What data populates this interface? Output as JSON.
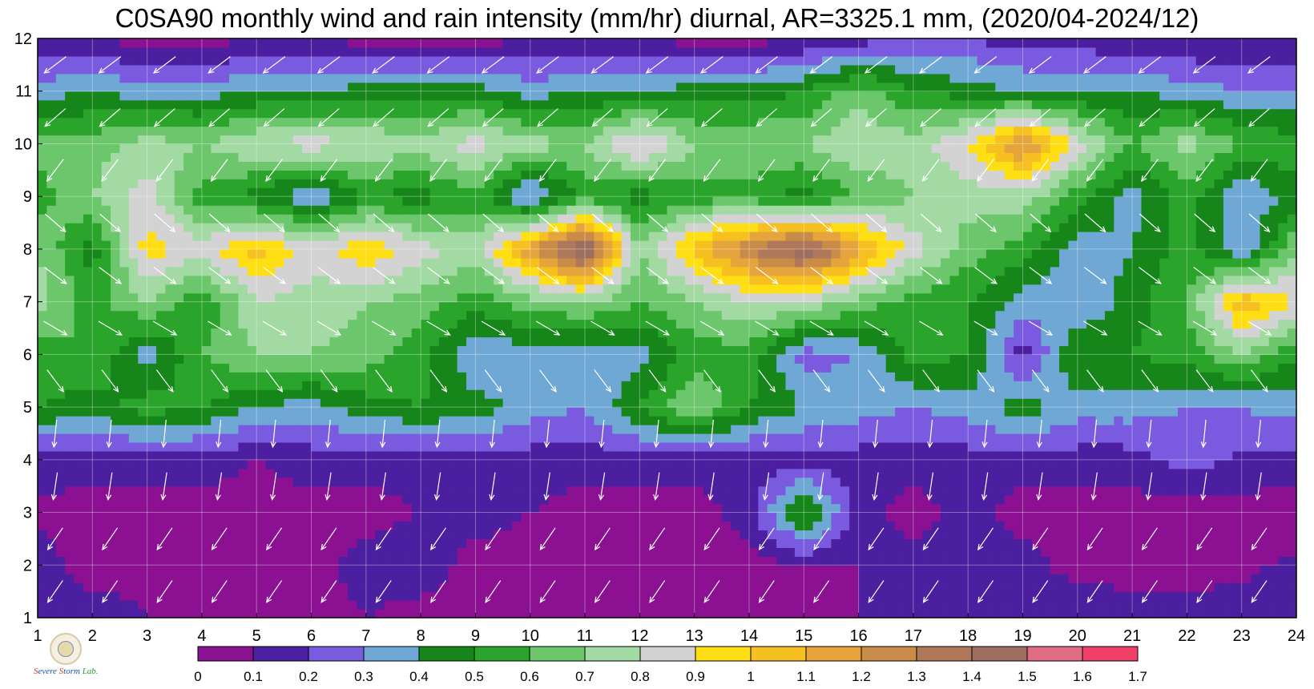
{
  "chart_data": {
    "type": "heatmap",
    "title": "C0SA90 monthly wind and rain intensity (mm/hr) diurnal, AR=3325.1 mm, (2020/04-2024/12)",
    "x_ticks": [
      "1",
      "2",
      "3",
      "4",
      "5",
      "6",
      "7",
      "8",
      "9",
      "10",
      "11",
      "12",
      "13",
      "14",
      "15",
      "16",
      "17",
      "18",
      "19",
      "20",
      "21",
      "22",
      "23",
      "24"
    ],
    "y_ticks": [
      "1",
      "2",
      "3",
      "4",
      "5",
      "6",
      "7",
      "8",
      "9",
      "10",
      "11",
      "12"
    ],
    "xlim": [
      1,
      24
    ],
    "ylim": [
      1,
      12
    ],
    "x_hours": [
      1,
      2,
      3,
      4,
      5,
      6,
      7,
      8,
      9,
      10,
      11,
      12,
      13,
      14,
      15,
      16,
      17,
      18,
      19,
      20,
      21,
      22,
      23,
      24
    ],
    "y_months": [
      1,
      2,
      3,
      4,
      5,
      6,
      7,
      8,
      9,
      10,
      11,
      12
    ],
    "z": [
      [
        0.12,
        0.15,
        0.1,
        0.05,
        0.05,
        0.05,
        0.1,
        0.05,
        0.05,
        0.1,
        0.05,
        0.05,
        0.05,
        0.05,
        0.05,
        0.1,
        0.15,
        0.2,
        0.15,
        0.2,
        0.15,
        0.15,
        0.15,
        0.15
      ],
      [
        0.15,
        0.05,
        0.08,
        0.05,
        0.05,
        0.05,
        0.15,
        0.18,
        0.05,
        0.05,
        0.05,
        0.05,
        0.05,
        0.05,
        0.1,
        0.1,
        0.15,
        0.2,
        0.15,
        0.05,
        0.05,
        0.05,
        0.08,
        0.12
      ],
      [
        0.08,
        0.05,
        0.05,
        0.05,
        0.05,
        0.05,
        0.05,
        0.1,
        0.15,
        0.1,
        0.05,
        0.05,
        0.05,
        0.15,
        0.55,
        0.15,
        0.05,
        0.15,
        0.05,
        0.05,
        0.05,
        0.05,
        0.05,
        0.05
      ],
      [
        0.15,
        0.15,
        0.15,
        0.15,
        0.1,
        0.15,
        0.15,
        0.15,
        0.15,
        0.15,
        0.15,
        0.15,
        0.15,
        0.15,
        0.15,
        0.15,
        0.15,
        0.15,
        0.15,
        0.15,
        0.15,
        0.25,
        0.18,
        0.15
      ],
      [
        0.5,
        0.45,
        0.55,
        0.5,
        0.4,
        0.35,
        0.45,
        0.5,
        0.45,
        0.35,
        0.3,
        0.5,
        0.7,
        0.5,
        0.4,
        0.35,
        0.3,
        0.35,
        0.45,
        0.35,
        0.35,
        0.3,
        0.3,
        0.35
      ],
      [
        0.55,
        0.6,
        0.35,
        0.6,
        0.7,
        0.7,
        0.65,
        0.55,
        0.3,
        0.35,
        0.35,
        0.35,
        0.55,
        0.55,
        0.25,
        0.3,
        0.55,
        0.5,
        0.15,
        0.5,
        0.5,
        0.55,
        0.7,
        0.5
      ],
      [
        0.75,
        0.55,
        0.7,
        0.5,
        0.8,
        0.75,
        0.7,
        0.65,
        0.55,
        0.65,
        0.7,
        0.6,
        0.7,
        0.8,
        0.8,
        0.65,
        0.55,
        0.5,
        0.35,
        0.3,
        0.45,
        0.6,
        1.1,
        0.9
      ],
      [
        0.7,
        0.45,
        0.95,
        0.85,
        1.05,
        0.85,
        1.0,
        0.85,
        0.75,
        1.2,
        1.55,
        0.7,
        1.05,
        1.3,
        1.5,
        1.15,
        0.85,
        0.65,
        0.55,
        0.35,
        0.4,
        0.55,
        0.3,
        0.7
      ],
      [
        0.55,
        0.7,
        0.85,
        0.55,
        0.45,
        0.3,
        0.5,
        0.45,
        0.55,
        0.25,
        0.55,
        0.45,
        0.55,
        0.55,
        0.45,
        0.6,
        0.7,
        0.75,
        0.75,
        0.55,
        0.35,
        0.55,
        0.3,
        0.45
      ],
      [
        0.65,
        0.65,
        0.75,
        0.7,
        0.8,
        0.85,
        0.8,
        0.75,
        0.85,
        0.75,
        0.7,
        0.95,
        0.7,
        0.7,
        0.7,
        0.8,
        0.75,
        0.9,
        1.25,
        0.85,
        0.6,
        0.75,
        0.6,
        0.55
      ],
      [
        0.35,
        0.4,
        0.35,
        0.35,
        0.4,
        0.4,
        0.45,
        0.45,
        0.45,
        0.35,
        0.4,
        0.4,
        0.45,
        0.45,
        0.5,
        0.65,
        0.5,
        0.45,
        0.4,
        0.4,
        0.4,
        0.35,
        0.3,
        0.3
      ],
      [
        0.1,
        0.1,
        0.05,
        0.05,
        0.1,
        0.1,
        0.05,
        0.05,
        0.05,
        0.1,
        0.1,
        0.1,
        0.05,
        0.05,
        0.1,
        0.15,
        0.2,
        0.2,
        0.15,
        0.15,
        0.1,
        0.1,
        0.1,
        0.1
      ]
    ],
    "wind_direction_to": "south-west / south-east varying by month",
    "colorbar": {
      "levels": [
        "0",
        "0.1",
        "0.2",
        "0.3",
        "0.4",
        "0.5",
        "0.6",
        "0.7",
        "0.8",
        "0.9",
        "1",
        "1.1",
        "1.2",
        "1.3",
        "1.4",
        "1.5",
        "1.6",
        "1.7"
      ],
      "colors": [
        "#8b1192",
        "#4b1fa0",
        "#7a5be0",
        "#6fa8d4",
        "#16861a",
        "#2aa42a",
        "#6cc66c",
        "#a3d9a3",
        "#d3d3d3",
        "#ffde13",
        "#f5c020",
        "#e6a43c",
        "#c98c48",
        "#b0785a",
        "#9b6e60",
        "#e06c84",
        "#f0406a",
        "#d8203c"
      ],
      "unit": "mm/hr"
    },
    "grid": true
  },
  "logo": {
    "text_a": "S",
    "text_b": "evere",
    "text_c": "S",
    "text_d": "torm",
    "text_e": "Lab."
  }
}
